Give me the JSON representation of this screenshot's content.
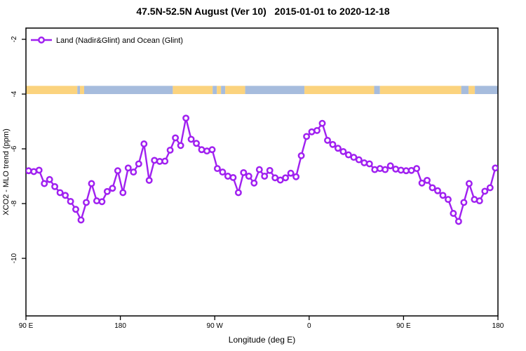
{
  "title": "47.5N-52.5N August (Ver 10)   2015-01-01 to 2020-12-18",
  "chart_data": {
    "type": "line",
    "title": "47.5N-52.5N August (Ver 10)   2015-01-01 to 2020-12-18",
    "xlabel": "Longitude (deg E)",
    "ylabel": "XCO2 - MLO trend (ppm)",
    "xlim": [
      90,
      540
    ],
    "ylim": [
      -12.1,
      -1.6
    ],
    "grid": false,
    "x_ticks": [
      {
        "lon": 90,
        "label": "90 E"
      },
      {
        "lon": 180,
        "label": "180"
      },
      {
        "lon": 270,
        "label": "90 W"
      },
      {
        "lon": 360,
        "label": "0"
      },
      {
        "lon": 450,
        "label": "90 E"
      },
      {
        "lon": 540,
        "label": "180"
      }
    ],
    "y_ticks": [
      {
        "value": -2,
        "label": "-2"
      },
      {
        "value": -4,
        "label": "-4"
      },
      {
        "value": -6,
        "label": "-6"
      },
      {
        "value": -8,
        "label": "-8"
      },
      {
        "value": -10,
        "label": "-10"
      }
    ],
    "legend": {
      "position": "top-left-inside",
      "entries": [
        {
          "label": "Land (Nadir&Glint) and Ocean (Glint)",
          "color": "#A020F0",
          "marker": "open-circle"
        }
      ]
    },
    "series": [
      {
        "name": "Land (Nadir&Glint) and Ocean (Glint)",
        "color": "#A020F0",
        "marker_fill": "#FFFFFF",
        "x": [
          92.5,
          97.5,
          102.5,
          107.5,
          112.5,
          117.5,
          122.5,
          127.5,
          132.5,
          137.5,
          142.5,
          147.5,
          152.5,
          157.5,
          162.5,
          167.5,
          172.5,
          177.5,
          182.5,
          187.5,
          192.5,
          197.5,
          202.5,
          207.5,
          212.5,
          217.5,
          222.5,
          227.5,
          232.5,
          237.5,
          242.5,
          247.5,
          252.5,
          257.5,
          262.5,
          267.5,
          272.5,
          277.5,
          282.5,
          287.5,
          292.5,
          297.5,
          302.5,
          307.5,
          312.5,
          317.5,
          322.5,
          327.5,
          332.5,
          337.5,
          342.5,
          347.5,
          352.5,
          357.5,
          362.5,
          367.5,
          372.5,
          377.5,
          382.5,
          387.5,
          392.5,
          397.5,
          402.5,
          407.5,
          412.5,
          417.5,
          422.5,
          427.5,
          432.5,
          437.5,
          442.5,
          447.5,
          452.5,
          457.5,
          462.5,
          467.5,
          472.5,
          477.5,
          482.5,
          487.5,
          492.5,
          497.5,
          502.5,
          507.5,
          512.5,
          517.5,
          522.5,
          527.5,
          532.5,
          537.5
        ],
        "y": [
          -6.8,
          -6.83,
          -6.78,
          -7.27,
          -7.12,
          -7.38,
          -7.6,
          -7.7,
          -7.92,
          -8.21,
          -8.6,
          -7.96,
          -7.27,
          -7.9,
          -7.93,
          -7.56,
          -7.44,
          -6.8,
          -7.6,
          -6.7,
          -6.85,
          -6.55,
          -5.82,
          -7.15,
          -6.42,
          -6.46,
          -6.45,
          -6.05,
          -5.6,
          -5.88,
          -4.88,
          -5.65,
          -5.8,
          -6.03,
          -6.08,
          -6.03,
          -6.72,
          -6.85,
          -7.0,
          -7.05,
          -7.6,
          -6.87,
          -7.0,
          -7.25,
          -6.76,
          -7.0,
          -6.79,
          -7.06,
          -7.14,
          -7.06,
          -6.89,
          -7.02,
          -6.25,
          -5.55,
          -5.38,
          -5.33,
          -5.07,
          -5.69,
          -5.84,
          -5.98,
          -6.1,
          -6.22,
          -6.31,
          -6.4,
          -6.51,
          -6.55,
          -6.76,
          -6.72,
          -6.76,
          -6.62,
          -6.74,
          -6.78,
          -6.8,
          -6.79,
          -6.72,
          -7.25,
          -7.15,
          -7.42,
          -7.53,
          -7.7,
          -7.85,
          -8.36,
          -8.65,
          -7.96,
          -7.27,
          -7.85,
          -7.9,
          -7.55,
          -7.42,
          -6.7
        ]
      }
    ],
    "land_ocean_band": {
      "value_top": -3.7,
      "value_bottom": -4.0,
      "land_color": "#FBD37E",
      "ocean_color": "#A6BCDD",
      "segments": [
        {
          "from": 90,
          "to": 139,
          "surface": "land"
        },
        {
          "from": 139,
          "to": 141.5,
          "surface": "ocean"
        },
        {
          "from": 141.5,
          "to": 145.5,
          "surface": "land"
        },
        {
          "from": 145.5,
          "to": 230,
          "surface": "ocean"
        },
        {
          "from": 230,
          "to": 268,
          "surface": "land"
        },
        {
          "from": 268,
          "to": 272,
          "surface": "ocean"
        },
        {
          "from": 272,
          "to": 276,
          "surface": "land"
        },
        {
          "from": 276,
          "to": 280,
          "surface": "ocean"
        },
        {
          "from": 280,
          "to": 299,
          "surface": "land"
        },
        {
          "from": 299,
          "to": 355.5,
          "surface": "ocean"
        },
        {
          "from": 355.5,
          "to": 422,
          "surface": "land"
        },
        {
          "from": 422,
          "to": 427.5,
          "surface": "ocean"
        },
        {
          "from": 427.5,
          "to": 505,
          "surface": "land"
        },
        {
          "from": 505,
          "to": 512,
          "surface": "ocean"
        },
        {
          "from": 512,
          "to": 518,
          "surface": "land"
        },
        {
          "from": 518,
          "to": 540,
          "surface": "ocean"
        }
      ]
    }
  }
}
